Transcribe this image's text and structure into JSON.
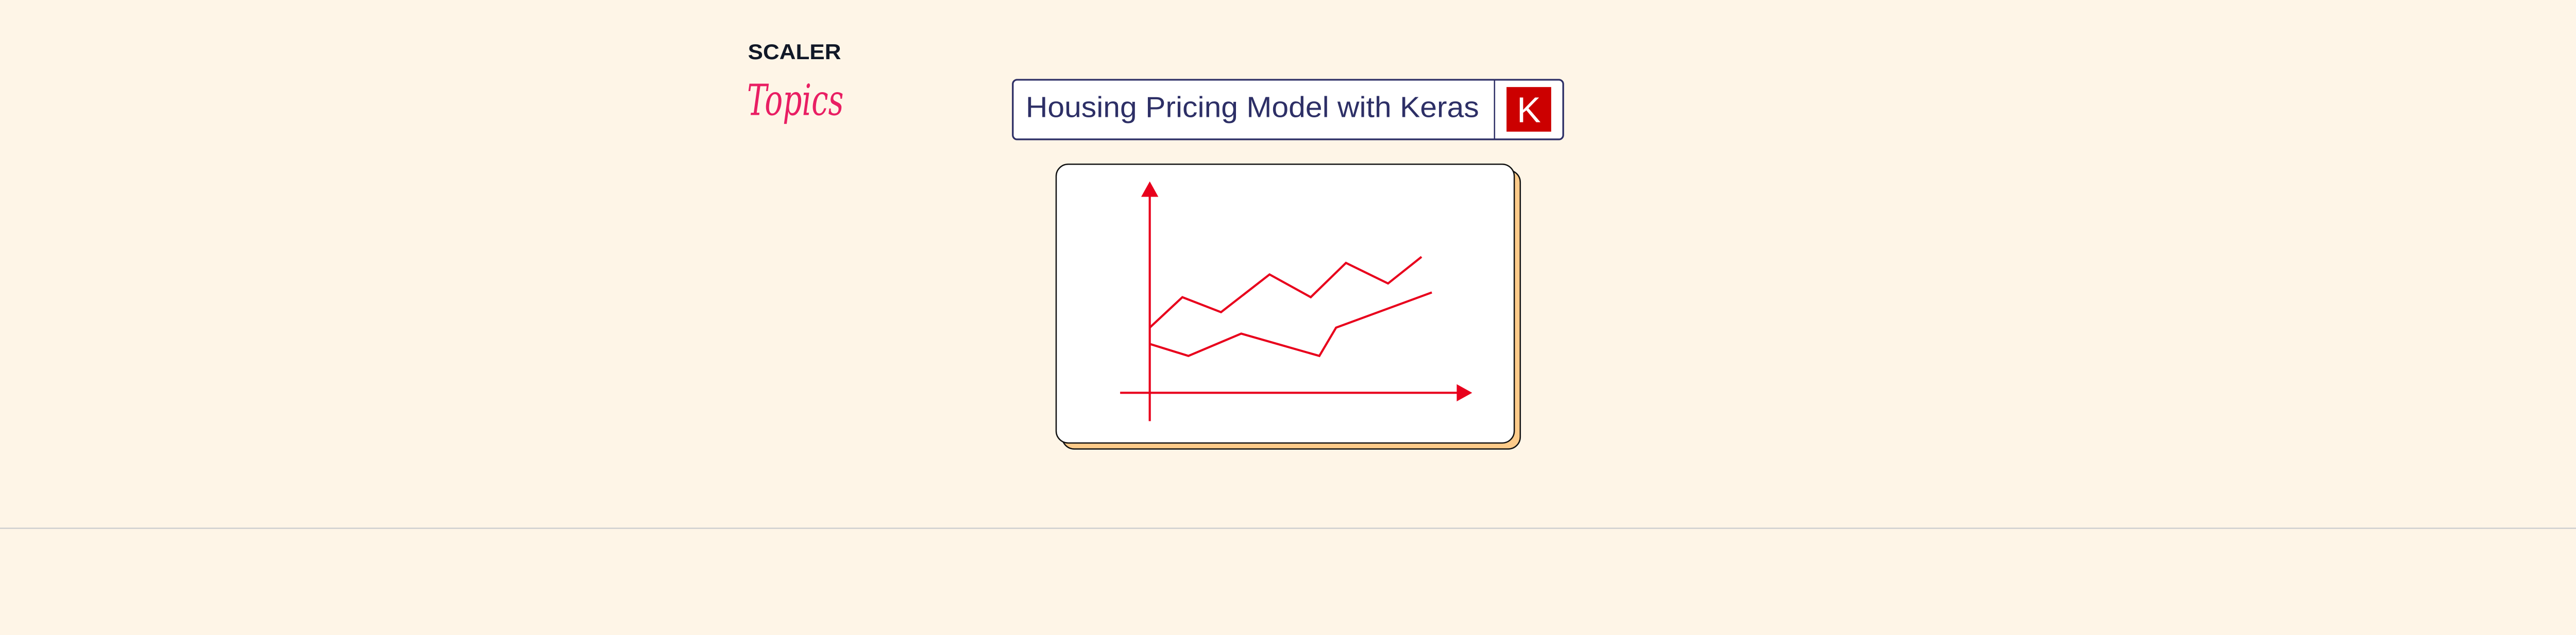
{
  "logo": {
    "line1": "SCALER",
    "line2": "Topics"
  },
  "header": {
    "title": "Housing Pricing Model with Keras",
    "badge_letter": "K"
  },
  "colors": {
    "background": "#fef5e7",
    "title_text": "#2d2f66",
    "keras_red": "#cc0000",
    "chart_red": "#e8001c",
    "logo_pink": "#e91e63",
    "card_shadow": "#fdcb8a"
  }
}
